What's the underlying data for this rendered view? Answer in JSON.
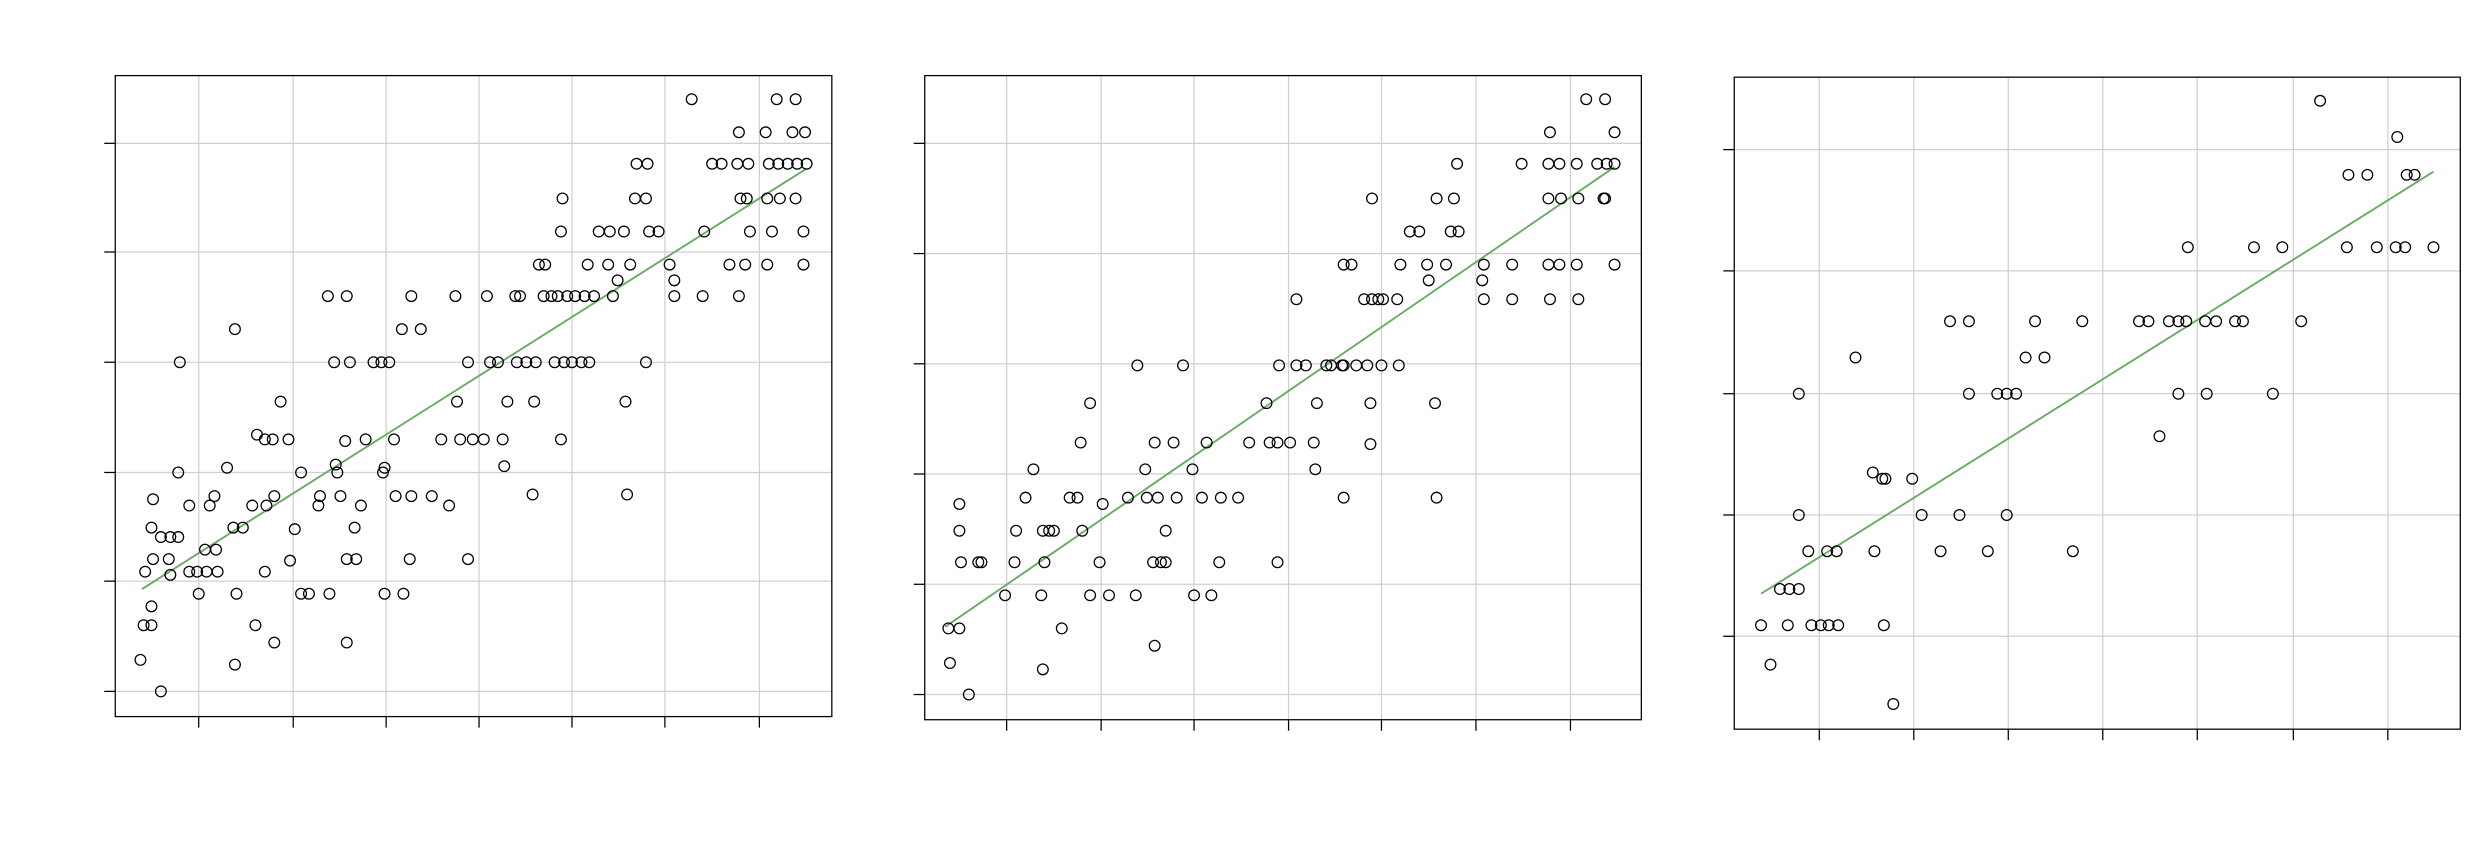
{
  "chart_data": [
    {
      "type": "scatter",
      "color": "#000000",
      "grid": true,
      "xlim": [
        73,
        528
      ],
      "ylim": [
        45,
        452
      ],
      "xticks": [
        126,
        186,
        245,
        304,
        363,
        422,
        482
      ],
      "yticks": [
        61,
        131,
        200,
        270,
        340,
        409
      ],
      "x": [
        89,
        91,
        96,
        96,
        102,
        92,
        97,
        96,
        97,
        102,
        108,
        113,
        107,
        108,
        113,
        114,
        120,
        120,
        125,
        126,
        131,
        130,
        133,
        138,
        137,
        136,
        144,
        149,
        148,
        150,
        149,
        154,
        160,
        162,
        163,
        168,
        169,
        173,
        168,
        174,
        174,
        178,
        183,
        184,
        187,
        191,
        191,
        196,
        202,
        203,
        208,
        209,
        212,
        213,
        214,
        216,
        219,
        220,
        220,
        222,
        220,
        225,
        226,
        229,
        232,
        237,
        242,
        243,
        244,
        244,
        247,
        250,
        251,
        255,
        256,
        260,
        261,
        261,
        267,
        274,
        280,
        285,
        289,
        290,
        292,
        297,
        297,
        300,
        307,
        309,
        311,
        316,
        319,
        320,
        322,
        327,
        330,
        328,
        334,
        338,
        339,
        340,
        342,
        346,
        345,
        350,
        352,
        354,
        356,
        356,
        357,
        358,
        360,
        363,
        365,
        369,
        371,
        374,
        373,
        377,
        380,
        386,
        387,
        389,
        392,
        396,
        397,
        398,
        400,
        403,
        404,
        410,
        410,
        411,
        412,
        418,
        425,
        428,
        428,
        439,
        446,
        447,
        452,
        458,
        463,
        469,
        469,
        468,
        470,
        473,
        474,
        475,
        476,
        486,
        488,
        487,
        487,
        490,
        493,
        494,
        495,
        500,
        505,
        505,
        506,
        510,
        510,
        511,
        512,
        503
      ],
      "y": [
        81,
        103,
        103,
        115,
        61,
        137,
        145,
        165,
        183,
        159,
        159,
        159,
        145,
        135,
        200,
        270,
        179,
        137,
        137,
        123,
        137,
        151,
        179,
        137,
        151,
        185,
        203,
        291,
        165,
        123,
        78,
        165,
        179,
        103,
        224,
        221,
        179,
        221,
        137,
        185,
        92,
        245,
        221,
        144,
        164,
        200,
        123,
        123,
        179,
        185,
        312,
        123,
        270,
        205,
        200,
        185,
        220,
        312,
        145,
        270,
        92,
        165,
        145,
        179,
        221,
        270,
        270,
        200,
        203,
        123,
        270,
        221,
        185,
        291,
        123,
        145,
        312,
        185,
        291,
        185,
        221,
        179,
        312,
        245,
        221,
        145,
        270,
        221,
        221,
        312,
        270,
        270,
        221,
        204,
        245,
        312,
        312,
        270,
        270,
        186,
        245,
        270,
        332,
        332,
        312,
        312,
        270,
        312,
        221,
        353,
        374,
        270,
        312,
        270,
        312,
        270,
        312,
        270,
        332,
        312,
        353,
        332,
        353,
        312,
        322,
        353,
        245,
        186,
        332,
        374,
        396,
        270,
        374,
        396,
        353,
        353,
        332,
        322,
        312,
        437,
        312,
        353,
        396,
        396,
        332,
        312,
        416,
        396,
        374,
        332,
        374,
        396,
        353,
        416,
        396,
        332,
        374,
        353,
        437,
        396,
        374,
        396,
        437,
        374,
        396,
        332,
        353,
        416,
        396,
        416
      ],
      "trend": {
        "color": "#6aaa64",
        "x": [
          90,
          512
        ],
        "y": [
          126,
          393
        ]
      }
    },
    {
      "type": "scatter",
      "color": "#000000",
      "grid": true,
      "xlim": [
        587,
        1042
      ],
      "ylim": [
        43,
        452
      ],
      "xticks": [
        639,
        699,
        758,
        818,
        877,
        937,
        997
      ],
      "yticks": [
        59,
        129,
        199,
        269,
        339,
        409
      ],
      "x": [
        602,
        609,
        603,
        609,
        609,
        610,
        615,
        621,
        623,
        638,
        644,
        645,
        651,
        656,
        661,
        662,
        663,
        666,
        669,
        662,
        674,
        679,
        684,
        686,
        687,
        692,
        692,
        698,
        700,
        704,
        716,
        721,
        722,
        727,
        728,
        732,
        733,
        735,
        733,
        737,
        740,
        740,
        745,
        747,
        751,
        757,
        758,
        763,
        766,
        769,
        774,
        775,
        786,
        793,
        804,
        806,
        811,
        811,
        812,
        819,
        823,
        823,
        829,
        834,
        836,
        835,
        842,
        845,
        852,
        853,
        853,
        853,
        858,
        861,
        866,
        868,
        870,
        870,
        871,
        875,
        878,
        877,
        871,
        887,
        888,
        889,
        895,
        901,
        906,
        907,
        911,
        912,
        912,
        918,
        921,
        923,
        925,
        926,
        942,
        941,
        942,
        960,
        960,
        966,
        983,
        983,
        983,
        984,
        984,
        990,
        990,
        991,
        1001,
        1002,
        1001,
        1002,
        1007,
        1014,
        1018,
        1019,
        1020,
        1025,
        1025,
        1025,
        1019
      ],
      "y": [
        101,
        101,
        79,
        180,
        163,
        143,
        59,
        143,
        143,
        122,
        143,
        163,
        184,
        202,
        122,
        163,
        143,
        163,
        163,
        75,
        101,
        184,
        184,
        219,
        163,
        122,
        244,
        143,
        180,
        122,
        184,
        122,
        268,
        202,
        184,
        143,
        219,
        184,
        90,
        143,
        163,
        143,
        219,
        184,
        268,
        202,
        122,
        184,
        219,
        122,
        143,
        184,
        184,
        219,
        244,
        219,
        219,
        143,
        268,
        219,
        310,
        268,
        268,
        219,
        244,
        202,
        268,
        268,
        268,
        184,
        268,
        332,
        332,
        268,
        310,
        268,
        244,
        218,
        310,
        310,
        310,
        268,
        374,
        310,
        268,
        332,
        353,
        353,
        332,
        322,
        244,
        184,
        374,
        332,
        353,
        374,
        396,
        353,
        332,
        322,
        310,
        332,
        310,
        396,
        374,
        332,
        396,
        310,
        416,
        332,
        396,
        374,
        396,
        310,
        332,
        374,
        437,
        396,
        374,
        437,
        396,
        332,
        396,
        416,
        374
      ],
      "trend": {
        "color": "#6aaa64",
        "x": [
          600,
          1025
        ],
        "y": [
          102,
          394
        ]
      }
    },
    {
      "type": "scatter",
      "color": "#000000",
      "grid": true,
      "xlim": [
        1101,
        1562
      ],
      "ylim": [
        37,
        451
      ],
      "xticks": [
        1155,
        1215,
        1275,
        1335,
        1395,
        1456,
        1516
      ],
      "yticks": [
        96,
        173,
        250,
        328,
        405
      ],
      "x": [
        1118,
        1124,
        1130,
        1136,
        1135,
        1142,
        1142,
        1142,
        1148,
        1150,
        1156,
        1160,
        1161,
        1166,
        1167,
        1178,
        1189,
        1190,
        1195,
        1196,
        1197,
        1202,
        1214,
        1220,
        1232,
        1238,
        1244,
        1250,
        1250,
        1262,
        1268,
        1274,
        1274,
        1280,
        1286,
        1292,
        1298,
        1316,
        1322,
        1358,
        1364,
        1371,
        1377,
        1383,
        1383,
        1388,
        1389,
        1400,
        1401,
        1407,
        1419,
        1424,
        1431,
        1443,
        1449,
        1461,
        1473,
        1490,
        1491,
        1503,
        1509,
        1521,
        1522,
        1527,
        1528,
        1533,
        1545
      ],
      "y": [
        103,
        78,
        126,
        126,
        103,
        126,
        250,
        173,
        150,
        103,
        103,
        150,
        103,
        150,
        103,
        273,
        200,
        150,
        196,
        103,
        196,
        53,
        196,
        173,
        150,
        296,
        173,
        250,
        296,
        150,
        250,
        173,
        250,
        250,
        273,
        296,
        273,
        150,
        296,
        296,
        296,
        223,
        296,
        296,
        250,
        296,
        343,
        296,
        250,
        296,
        296,
        296,
        343,
        250,
        343,
        296,
        436,
        343,
        389,
        389,
        343,
        343,
        413,
        343,
        389,
        389,
        343
      ],
      "trend": {
        "color": "#6aaa64",
        "x": [
          1118,
          1545
        ],
        "y": [
          123,
          391
        ]
      }
    }
  ]
}
